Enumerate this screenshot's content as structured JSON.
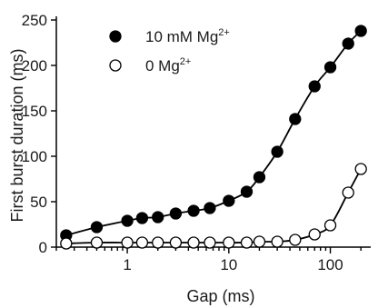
{
  "chart_data": {
    "type": "scatter",
    "xscale": "log",
    "xlim": [
      0.2,
      250
    ],
    "ylim": [
      0,
      250
    ],
    "xlabel": "Gap (ms)",
    "ylabel": "First burst duration (ms)",
    "xticks": [
      1,
      10,
      100
    ],
    "xtick_labels": [
      "1",
      "10",
      "100"
    ],
    "yticks": [
      0,
      50,
      100,
      150,
      200,
      250
    ],
    "ytick_labels": [
      "0",
      "50",
      "100",
      "150",
      "200",
      "250"
    ],
    "grid": false,
    "legend_position": "top-left",
    "series": [
      {
        "name": "10 mM Mg2+",
        "legend_base": "10 mM Mg",
        "legend_sup": "2+",
        "marker": "filled-circle",
        "color": "#000000",
        "x": [
          0.25,
          0.5,
          1.0,
          1.4,
          2.0,
          3.0,
          4.5,
          6.5,
          10,
          15,
          20,
          30,
          45,
          70,
          100,
          150,
          200
        ],
        "y": [
          13,
          22,
          29,
          32,
          33,
          37,
          40,
          43,
          51,
          61,
          77,
          105,
          141,
          177,
          198,
          224,
          238
        ]
      },
      {
        "name": "0 Mg2+",
        "legend_base": "0 Mg",
        "legend_sup": "2+",
        "marker": "open-circle",
        "color": "#000000",
        "x": [
          0.25,
          0.5,
          1.0,
          1.4,
          2.0,
          3.0,
          4.5,
          6.5,
          10,
          15,
          20,
          30,
          45,
          70,
          100,
          150,
          200
        ],
        "y": [
          4,
          5,
          5,
          5,
          5,
          5,
          5,
          5,
          5,
          5,
          6,
          6,
          8,
          14,
          24,
          60,
          86
        ]
      }
    ]
  }
}
